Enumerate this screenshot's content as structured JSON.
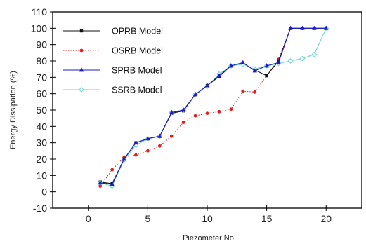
{
  "chart_data": {
    "type": "line",
    "xlabel": "Piezometer No.",
    "ylabel": "Energy Dissipation (%)",
    "xlim": [
      -3,
      23
    ],
    "ylim": [
      -10,
      110
    ],
    "xticks": [
      0,
      5,
      10,
      15,
      20
    ],
    "yticks": [
      -10,
      0,
      10,
      20,
      30,
      40,
      50,
      60,
      70,
      80,
      90,
      100,
      110
    ],
    "grid": false,
    "legend_position": "top-left",
    "series": [
      {
        "name": "OPRB Model",
        "color": "#111111",
        "marker": "square",
        "line_style": "solid",
        "x": [
          1,
          2,
          3,
          4,
          5,
          6,
          7,
          8,
          9,
          10,
          11,
          12,
          13,
          14,
          15,
          16,
          17,
          18,
          19,
          20
        ],
        "y": [
          6,
          5,
          20,
          30,
          32.5,
          34,
          48,
          49.5,
          59.5,
          65,
          70.5,
          77,
          78.5,
          74.5,
          71,
          80,
          100,
          100,
          100,
          100
        ]
      },
      {
        "name": "OSRB Model",
        "color": "#e02020",
        "marker": "circle",
        "line_style": "dotted",
        "x": [
          1,
          2,
          3,
          4,
          5,
          6,
          7,
          8,
          9,
          10,
          11,
          12,
          13,
          14,
          15,
          16,
          17,
          18,
          19,
          20
        ],
        "y": [
          3.5,
          13.5,
          21,
          22.5,
          25,
          28,
          34,
          42.5,
          46.5,
          48,
          49,
          50.5,
          61.5,
          61,
          71,
          81,
          100,
          100,
          100,
          100
        ]
      },
      {
        "name": "SPRB Model",
        "color": "#1c1ccc",
        "marker": "triangle",
        "line_style": "solid",
        "x": [
          1,
          2,
          3,
          4,
          5,
          6,
          7,
          8,
          9,
          10,
          11,
          12,
          13,
          14,
          15,
          16,
          17,
          18,
          19,
          20
        ],
        "y": [
          5.5,
          4.5,
          20,
          30,
          32.5,
          34,
          48.5,
          50,
          59.5,
          65,
          71,
          77,
          79,
          74,
          77,
          79,
          100,
          100,
          100,
          100
        ]
      },
      {
        "name": "SSRB Model",
        "color": "#6fd0d0",
        "marker": "diamond",
        "line_style": "solid",
        "x": [
          1,
          2,
          3,
          4,
          5,
          6,
          7,
          8,
          9,
          10,
          11,
          12,
          13,
          14,
          15,
          16,
          17,
          18,
          19,
          20
        ],
        "y": [
          5.5,
          3.5,
          19.5,
          28.5,
          32.5,
          34,
          48.5,
          50,
          59.5,
          64.5,
          72,
          77,
          78,
          75,
          77,
          78.5,
          80,
          81.5,
          84,
          100
        ]
      }
    ]
  }
}
